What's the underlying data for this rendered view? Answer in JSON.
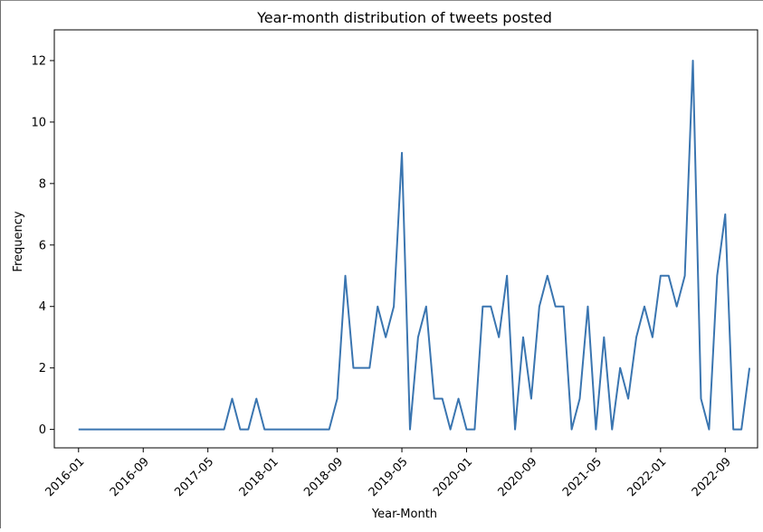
{
  "chart_data": {
    "type": "line",
    "title": "Year-month distribution of tweets posted",
    "xlabel": "Year-Month",
    "ylabel": "Frequency",
    "x_ticks": [
      "2016-01",
      "2016-09",
      "2017-05",
      "2018-01",
      "2018-09",
      "2019-05",
      "2020-01",
      "2020-09",
      "2021-05",
      "2022-01",
      "2022-09"
    ],
    "y_ticks": [
      0,
      2,
      4,
      6,
      8,
      10,
      12
    ],
    "ylim": [
      -0.6,
      13.0
    ],
    "xlim": [
      "2015-10",
      "2023-01"
    ],
    "grid": false,
    "legend": "none",
    "line_color": "#3a75b0",
    "series": [
      {
        "x": [
          "2016-01",
          "2016-02",
          "2016-03",
          "2016-04",
          "2016-05",
          "2016-06",
          "2016-07",
          "2016-08",
          "2016-09",
          "2016-10",
          "2016-11",
          "2016-12",
          "2017-01",
          "2017-02",
          "2017-03",
          "2017-04",
          "2017-05",
          "2017-06",
          "2017-07",
          "2017-08",
          "2017-09",
          "2017-10",
          "2017-11",
          "2017-12",
          "2018-01",
          "2018-02",
          "2018-03",
          "2018-04",
          "2018-05",
          "2018-06",
          "2018-07",
          "2018-08",
          "2018-09",
          "2018-10",
          "2018-11",
          "2018-12",
          "2019-01",
          "2019-02",
          "2019-03",
          "2019-04",
          "2019-05",
          "2019-06",
          "2019-07",
          "2019-08",
          "2019-09",
          "2019-10",
          "2019-11",
          "2019-12",
          "2020-01",
          "2020-02",
          "2020-03",
          "2020-04",
          "2020-05",
          "2020-06",
          "2020-07",
          "2020-08",
          "2020-09",
          "2020-10",
          "2020-11",
          "2020-12",
          "2021-01",
          "2021-02",
          "2021-03",
          "2021-04",
          "2021-05",
          "2021-06",
          "2021-07",
          "2021-08",
          "2021-09",
          "2021-10",
          "2021-11",
          "2021-12",
          "2022-01",
          "2022-02",
          "2022-03",
          "2022-04",
          "2022-05",
          "2022-06",
          "2022-07",
          "2022-08",
          "2022-09",
          "2022-10",
          "2022-11",
          "2022-12"
        ],
        "values": [
          0,
          0,
          0,
          0,
          0,
          0,
          0,
          0,
          0,
          0,
          0,
          0,
          0,
          0,
          0,
          0,
          0,
          0,
          0,
          1,
          0,
          0,
          1,
          0,
          0,
          0,
          0,
          0,
          0,
          0,
          0,
          0,
          1,
          5,
          2,
          2,
          2,
          4,
          3,
          4,
          9,
          0,
          3,
          4,
          1,
          1,
          0,
          1,
          0,
          0,
          4,
          4,
          3,
          5,
          0,
          3,
          1,
          4,
          5,
          4,
          4,
          0,
          1,
          4,
          0,
          3,
          0,
          2,
          1,
          3,
          4,
          3,
          5,
          5,
          4,
          5,
          12,
          1,
          0,
          5,
          7,
          0,
          0,
          2
        ]
      }
    ]
  }
}
